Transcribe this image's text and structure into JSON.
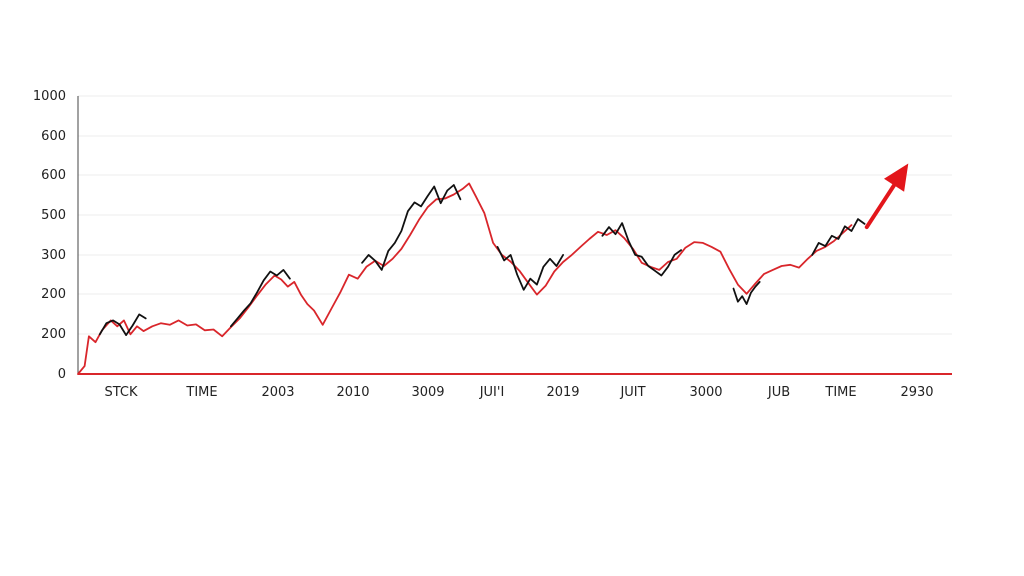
{
  "chart_data": {
    "type": "line",
    "title": "",
    "xlabel": "",
    "ylabel": "",
    "y_tick_labels": [
      "0",
      "200",
      "200",
      "300",
      "500",
      "600",
      "600",
      "1000"
    ],
    "x_tick_labels": [
      "STCK",
      "TIME",
      "2003",
      "2010",
      "3009",
      "JUI'I",
      "2019",
      "JUIT",
      "3000",
      "JUB",
      "TIME",
      "2930"
    ],
    "grid": "horizontal-faint",
    "legend": "none",
    "colors": {
      "line_primary": "#d9262b",
      "line_secondary": "#111111",
      "axis_x": "#d9262b",
      "axis_y": "#444444",
      "arrow": "#e3161b"
    },
    "series": [
      {
        "color_role": "line_primary",
        "points": [
          [
            0.0,
            0
          ],
          [
            0.3,
            20
          ],
          [
            0.5,
            95
          ],
          [
            0.8,
            80
          ],
          [
            1.1,
            110
          ],
          [
            1.5,
            135
          ],
          [
            1.8,
            120
          ],
          [
            2.1,
            135
          ],
          [
            2.4,
            100
          ],
          [
            2.7,
            120
          ],
          [
            3.0,
            108
          ],
          [
            3.4,
            120
          ],
          [
            3.8,
            128
          ],
          [
            4.2,
            124
          ],
          [
            4.6,
            135
          ],
          [
            5.0,
            122
          ],
          [
            5.4,
            125
          ],
          [
            5.8,
            110
          ],
          [
            6.2,
            112
          ],
          [
            6.6,
            95
          ],
          [
            7.0,
            118
          ],
          [
            7.4,
            140
          ],
          [
            7.8,
            168
          ],
          [
            8.2,
            198
          ],
          [
            8.6,
            226
          ],
          [
            9.0,
            248
          ],
          [
            9.3,
            238
          ],
          [
            9.6,
            220
          ],
          [
            9.9,
            232
          ],
          [
            10.2,
            200
          ],
          [
            10.5,
            176
          ],
          [
            10.8,
            160
          ],
          [
            11.2,
            124
          ],
          [
            11.6,
            165
          ],
          [
            12.0,
            205
          ],
          [
            12.4,
            250
          ],
          [
            12.8,
            240
          ],
          [
            13.2,
            270
          ],
          [
            13.6,
            285
          ],
          [
            14.0,
            272
          ],
          [
            14.4,
            290
          ],
          [
            14.8,
            315
          ],
          [
            15.2,
            350
          ],
          [
            15.6,
            388
          ],
          [
            16.0,
            420
          ],
          [
            16.4,
            440
          ],
          [
            16.8,
            442
          ],
          [
            17.2,
            452
          ],
          [
            17.6,
            466
          ],
          [
            17.9,
            480
          ],
          [
            18.2,
            448
          ],
          [
            18.6,
            405
          ],
          [
            19.0,
            330
          ],
          [
            19.4,
            300
          ],
          [
            19.8,
            283
          ],
          [
            20.2,
            260
          ],
          [
            20.6,
            230
          ],
          [
            21.0,
            200
          ],
          [
            21.4,
            222
          ],
          [
            21.8,
            258
          ],
          [
            22.2,
            282
          ],
          [
            22.6,
            300
          ],
          [
            23.0,
            320
          ],
          [
            23.4,
            340
          ],
          [
            23.8,
            358
          ],
          [
            24.2,
            350
          ],
          [
            24.6,
            362
          ],
          [
            25.0,
            342
          ],
          [
            25.4,
            315
          ],
          [
            25.8,
            280
          ],
          [
            26.2,
            270
          ],
          [
            26.6,
            262
          ],
          [
            27.0,
            282
          ],
          [
            27.4,
            290
          ],
          [
            27.8,
            318
          ],
          [
            28.2,
            332
          ],
          [
            28.6,
            330
          ],
          [
            29.0,
            320
          ],
          [
            29.4,
            308
          ],
          [
            29.8,
            265
          ],
          [
            30.2,
            225
          ],
          [
            30.6,
            202
          ],
          [
            31.0,
            228
          ],
          [
            31.4,
            252
          ],
          [
            31.8,
            262
          ],
          [
            32.2,
            272
          ],
          [
            32.6,
            275
          ],
          [
            33.0,
            268
          ],
          [
            33.4,
            290
          ],
          [
            33.8,
            310
          ],
          [
            34.2,
            320
          ],
          [
            34.6,
            335
          ],
          [
            35.0,
            355
          ],
          [
            35.4,
            375
          ]
        ]
      },
      {
        "color_role": "line_secondary",
        "points": [
          [
            1.0,
            100
          ],
          [
            1.3,
            128
          ],
          [
            1.6,
            135
          ],
          [
            1.9,
            125
          ],
          [
            2.2,
            98
          ],
          [
            2.5,
            122
          ],
          [
            2.8,
            150
          ],
          [
            3.1,
            140
          ]
        ]
      },
      {
        "color_role": "line_secondary",
        "points": [
          [
            7.0,
            120
          ],
          [
            7.3,
            140
          ],
          [
            7.6,
            160
          ],
          [
            7.9,
            178
          ],
          [
            8.2,
            206
          ],
          [
            8.5,
            236
          ],
          [
            8.8,
            258
          ],
          [
            9.1,
            248
          ],
          [
            9.4,
            262
          ],
          [
            9.7,
            240
          ]
        ]
      },
      {
        "color_role": "line_secondary",
        "points": [
          [
            13.0,
            280
          ],
          [
            13.3,
            300
          ],
          [
            13.6,
            285
          ],
          [
            13.9,
            262
          ],
          [
            14.2,
            310
          ],
          [
            14.5,
            330
          ],
          [
            14.8,
            360
          ],
          [
            15.1,
            410
          ],
          [
            15.4,
            432
          ],
          [
            15.7,
            422
          ],
          [
            16.0,
            448
          ],
          [
            16.3,
            472
          ],
          [
            16.6,
            430
          ],
          [
            16.9,
            462
          ],
          [
            17.2,
            476
          ],
          [
            17.5,
            440
          ]
        ]
      },
      {
        "color_role": "line_secondary",
        "points": [
          [
            19.2,
            320
          ],
          [
            19.5,
            286
          ],
          [
            19.8,
            300
          ],
          [
            20.1,
            250
          ],
          [
            20.4,
            212
          ],
          [
            20.7,
            240
          ],
          [
            21.0,
            225
          ],
          [
            21.3,
            270
          ],
          [
            21.6,
            290
          ],
          [
            21.9,
            272
          ],
          [
            22.2,
            300
          ]
        ]
      },
      {
        "color_role": "line_secondary",
        "points": [
          [
            24.0,
            348
          ],
          [
            24.3,
            370
          ],
          [
            24.6,
            352
          ],
          [
            24.9,
            380
          ],
          [
            25.2,
            335
          ],
          [
            25.5,
            300
          ],
          [
            25.8,
            295
          ],
          [
            26.1,
            272
          ],
          [
            26.4,
            260
          ],
          [
            26.7,
            248
          ],
          [
            27.0,
            270
          ],
          [
            27.3,
            300
          ],
          [
            27.6,
            312
          ]
        ]
      },
      {
        "color_role": "line_secondary",
        "points": [
          [
            30.0,
            215
          ],
          [
            30.2,
            182
          ],
          [
            30.4,
            196
          ],
          [
            30.6,
            176
          ],
          [
            30.8,
            205
          ],
          [
            31.0,
            220
          ],
          [
            31.2,
            232
          ]
        ]
      },
      {
        "color_role": "line_secondary",
        "points": [
          [
            33.6,
            300
          ],
          [
            33.9,
            330
          ],
          [
            34.2,
            322
          ],
          [
            34.5,
            348
          ],
          [
            34.8,
            340
          ],
          [
            35.1,
            372
          ],
          [
            35.4,
            360
          ],
          [
            35.7,
            390
          ],
          [
            36.0,
            378
          ]
        ]
      }
    ],
    "annotation": {
      "type": "arrow",
      "from": [
        36.1,
        370
      ],
      "to": [
        38.0,
        530
      ],
      "color_role": "arrow"
    }
  }
}
